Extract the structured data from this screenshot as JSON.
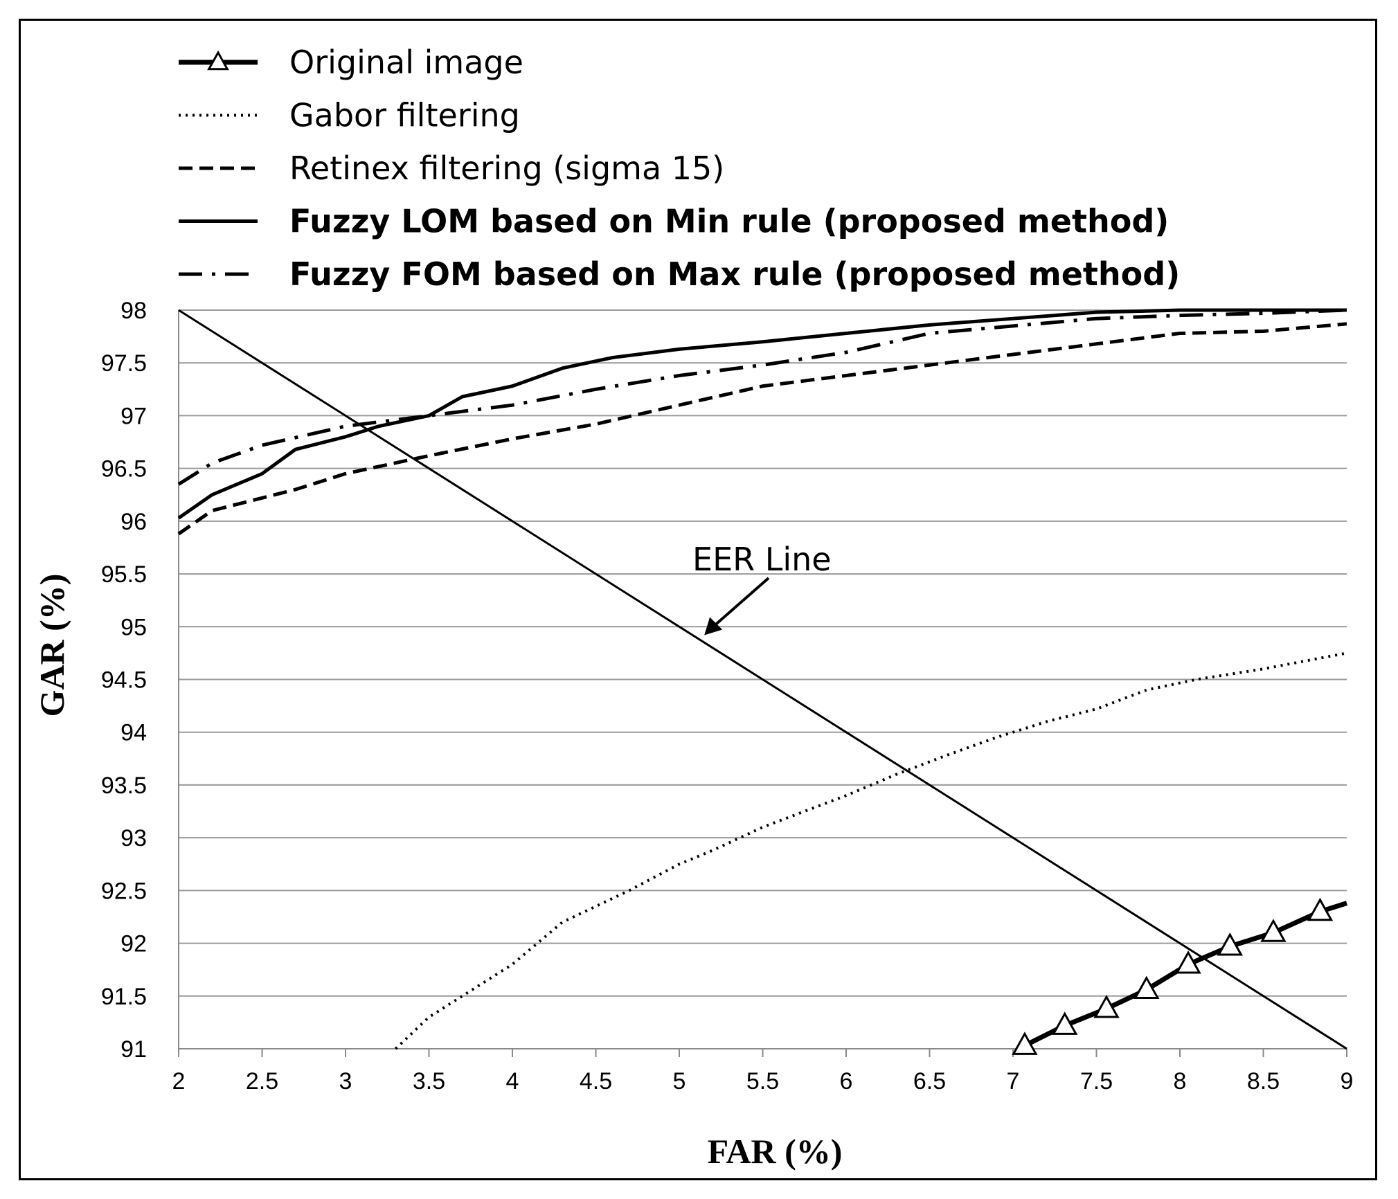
{
  "chart_data": {
    "type": "line",
    "xlabel": "FAR (%)",
    "ylabel": "GAR (%)",
    "xlim": [
      2,
      9
    ],
    "ylim": [
      91,
      98
    ],
    "xticks": [
      2,
      2.5,
      3,
      3.5,
      4,
      4.5,
      5,
      5.5,
      6,
      6.5,
      7,
      7.5,
      8,
      8.5,
      9
    ],
    "xtick_labels": [
      "2",
      "2.5",
      "3",
      "3.5",
      "4",
      "4.5",
      "5",
      "5.5",
      "6",
      "6.5",
      "7",
      "7.5",
      "8",
      "8.5",
      "9"
    ],
    "yticks": [
      91,
      91.5,
      92,
      92.5,
      93,
      93.5,
      94,
      94.5,
      95,
      95.5,
      96,
      96.5,
      97,
      97.5,
      98
    ],
    "ytick_labels": [
      "91",
      "91.5",
      "92",
      "92.5",
      "93",
      "93.5",
      "94",
      "94.5",
      "95",
      "95.5",
      "96",
      "96.5",
      "97",
      "97.5",
      "98"
    ],
    "grid": "horizontal",
    "legend_position": "top",
    "series": [
      {
        "name": "Original image",
        "style": "solid-thick-triangle",
        "x": [
          7.07,
          7.31,
          7.56,
          7.8,
          8.05,
          8.3,
          8.56,
          8.84,
          9.0
        ],
        "y": [
          91.03,
          91.22,
          91.38,
          91.56,
          91.8,
          91.97,
          92.1,
          92.3,
          92.38
        ],
        "marker_count": 8
      },
      {
        "name": "Gabor filtering",
        "style": "dotted",
        "x": [
          3.3,
          3.5,
          3.7,
          4.0,
          4.3,
          4.7,
          5.0,
          5.2,
          5.5,
          5.8,
          6.0,
          6.3,
          6.6,
          6.9,
          7.2,
          7.5,
          7.8,
          8.1,
          8.5,
          9.0
        ],
        "y": [
          91.0,
          91.3,
          91.5,
          91.8,
          92.2,
          92.5,
          92.75,
          92.88,
          93.1,
          93.28,
          93.4,
          93.6,
          93.78,
          93.95,
          94.1,
          94.22,
          94.4,
          94.5,
          94.6,
          94.75
        ]
      },
      {
        "name": "Retinex filtering (sigma 15)",
        "style": "dashed",
        "x": [
          2.0,
          2.2,
          2.5,
          2.7,
          3.0,
          3.5,
          4.0,
          4.5,
          5.0,
          5.5,
          6.0,
          6.5,
          7.0,
          7.5,
          8.0,
          8.5,
          9.0
        ],
        "y": [
          95.88,
          96.1,
          96.22,
          96.3,
          96.45,
          96.62,
          96.78,
          96.92,
          97.1,
          97.28,
          97.38,
          97.48,
          97.58,
          97.68,
          97.78,
          97.8,
          97.87
        ]
      },
      {
        "name": "Fuzzy LOM based on Min rule (proposed method)",
        "style": "solid",
        "x": [
          2.0,
          2.2,
          2.5,
          2.7,
          3.0,
          3.2,
          3.5,
          3.7,
          4.0,
          4.3,
          4.6,
          5.0,
          5.5,
          6.0,
          6.5,
          7.0,
          7.5,
          8.0,
          8.5,
          9.0
        ],
        "y": [
          96.03,
          96.25,
          96.45,
          96.68,
          96.8,
          96.9,
          97.0,
          97.18,
          97.28,
          97.45,
          97.55,
          97.63,
          97.7,
          97.78,
          97.86,
          97.92,
          97.98,
          98.0,
          98.0,
          98.02
        ]
      },
      {
        "name": "Fuzzy FOM based on Max rule (proposed method)",
        "style": "dash-dot",
        "x": [
          2.0,
          2.2,
          2.5,
          3.0,
          3.5,
          4.0,
          4.5,
          5.0,
          5.5,
          6.0,
          6.5,
          7.0,
          7.5,
          8.0,
          8.5,
          9.0
        ],
        "y": [
          96.35,
          96.55,
          96.72,
          96.9,
          97.0,
          97.1,
          97.25,
          97.38,
          97.48,
          97.6,
          97.78,
          97.85,
          97.92,
          97.95,
          97.97,
          98.0
        ]
      },
      {
        "name": "EER Line",
        "style": "solid-thin",
        "x": [
          2,
          9
        ],
        "y": [
          98,
          91
        ]
      }
    ],
    "annotations": [
      {
        "text": "EER Line",
        "target_x": 5.15,
        "target_y": 94.92
      }
    ]
  }
}
